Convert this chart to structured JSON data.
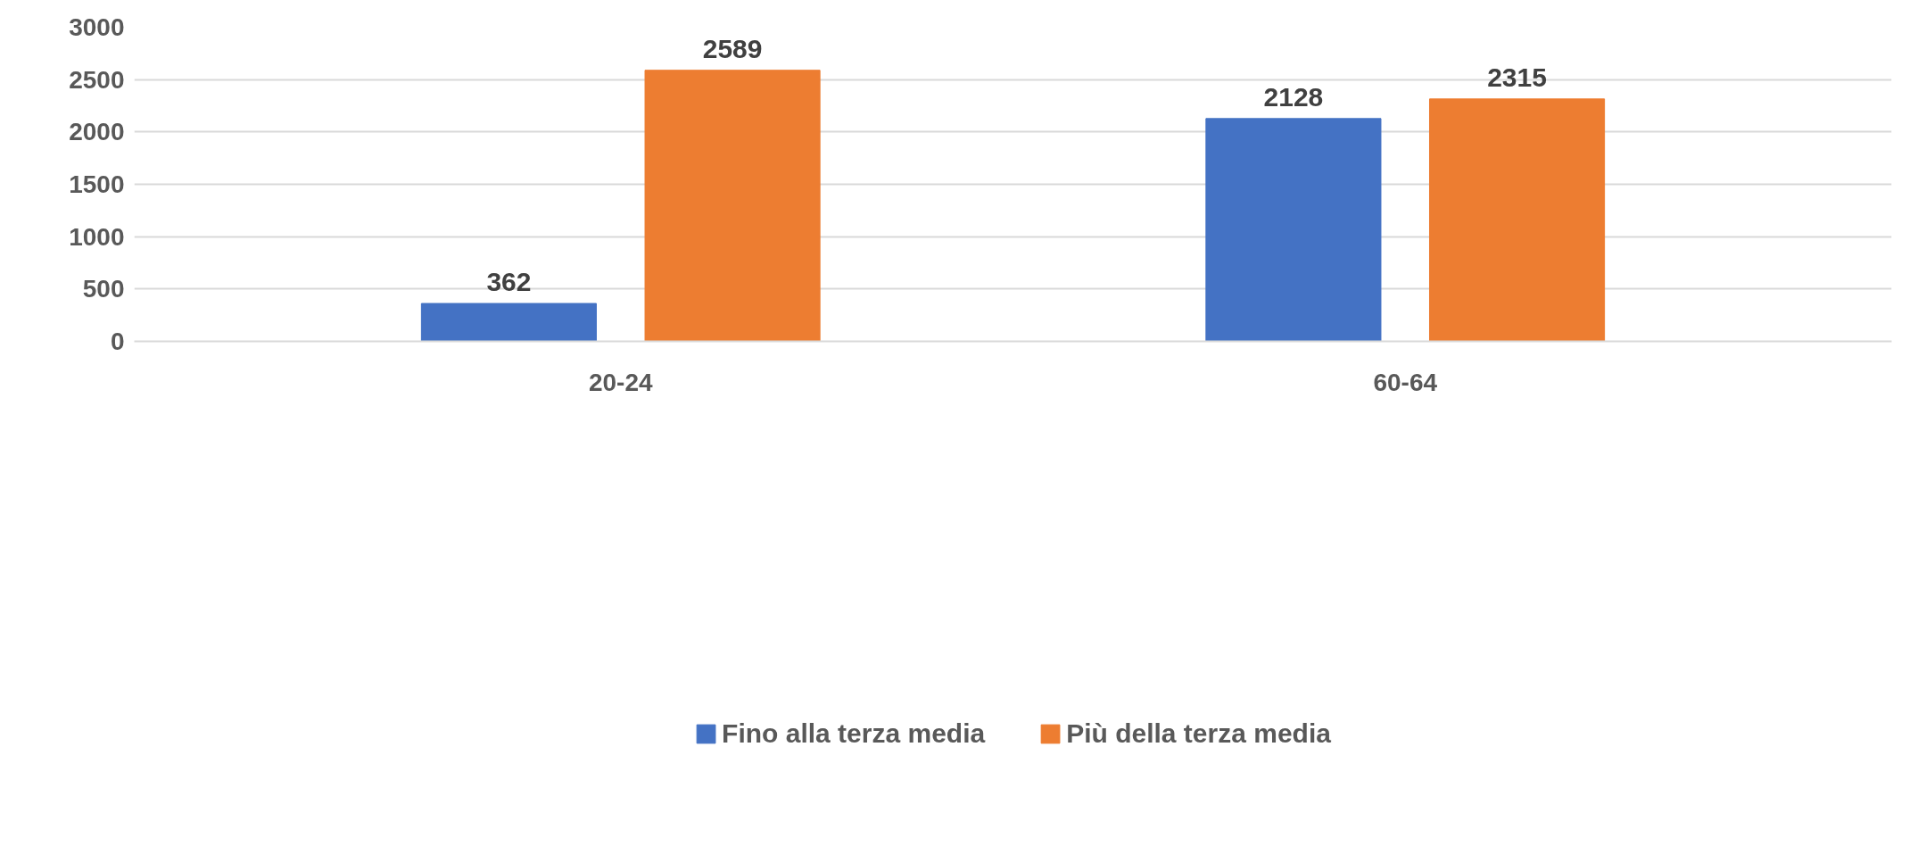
{
  "chart_data": {
    "type": "bar",
    "categories": [
      "20-24",
      "60-64"
    ],
    "series": [
      {
        "name": "Fino alla terza media",
        "color": "#4472c4",
        "values": [
          362,
          2128
        ]
      },
      {
        "name": "Più della terza media",
        "color": "#ed7d31",
        "values": [
          2589,
          2315
        ]
      }
    ],
    "ylim": [
      0,
      3000
    ],
    "yticks": [
      0,
      500,
      1000,
      1500,
      2000,
      2500,
      3000
    ],
    "grid": "y",
    "legend": "bottom",
    "data_labels": true
  }
}
